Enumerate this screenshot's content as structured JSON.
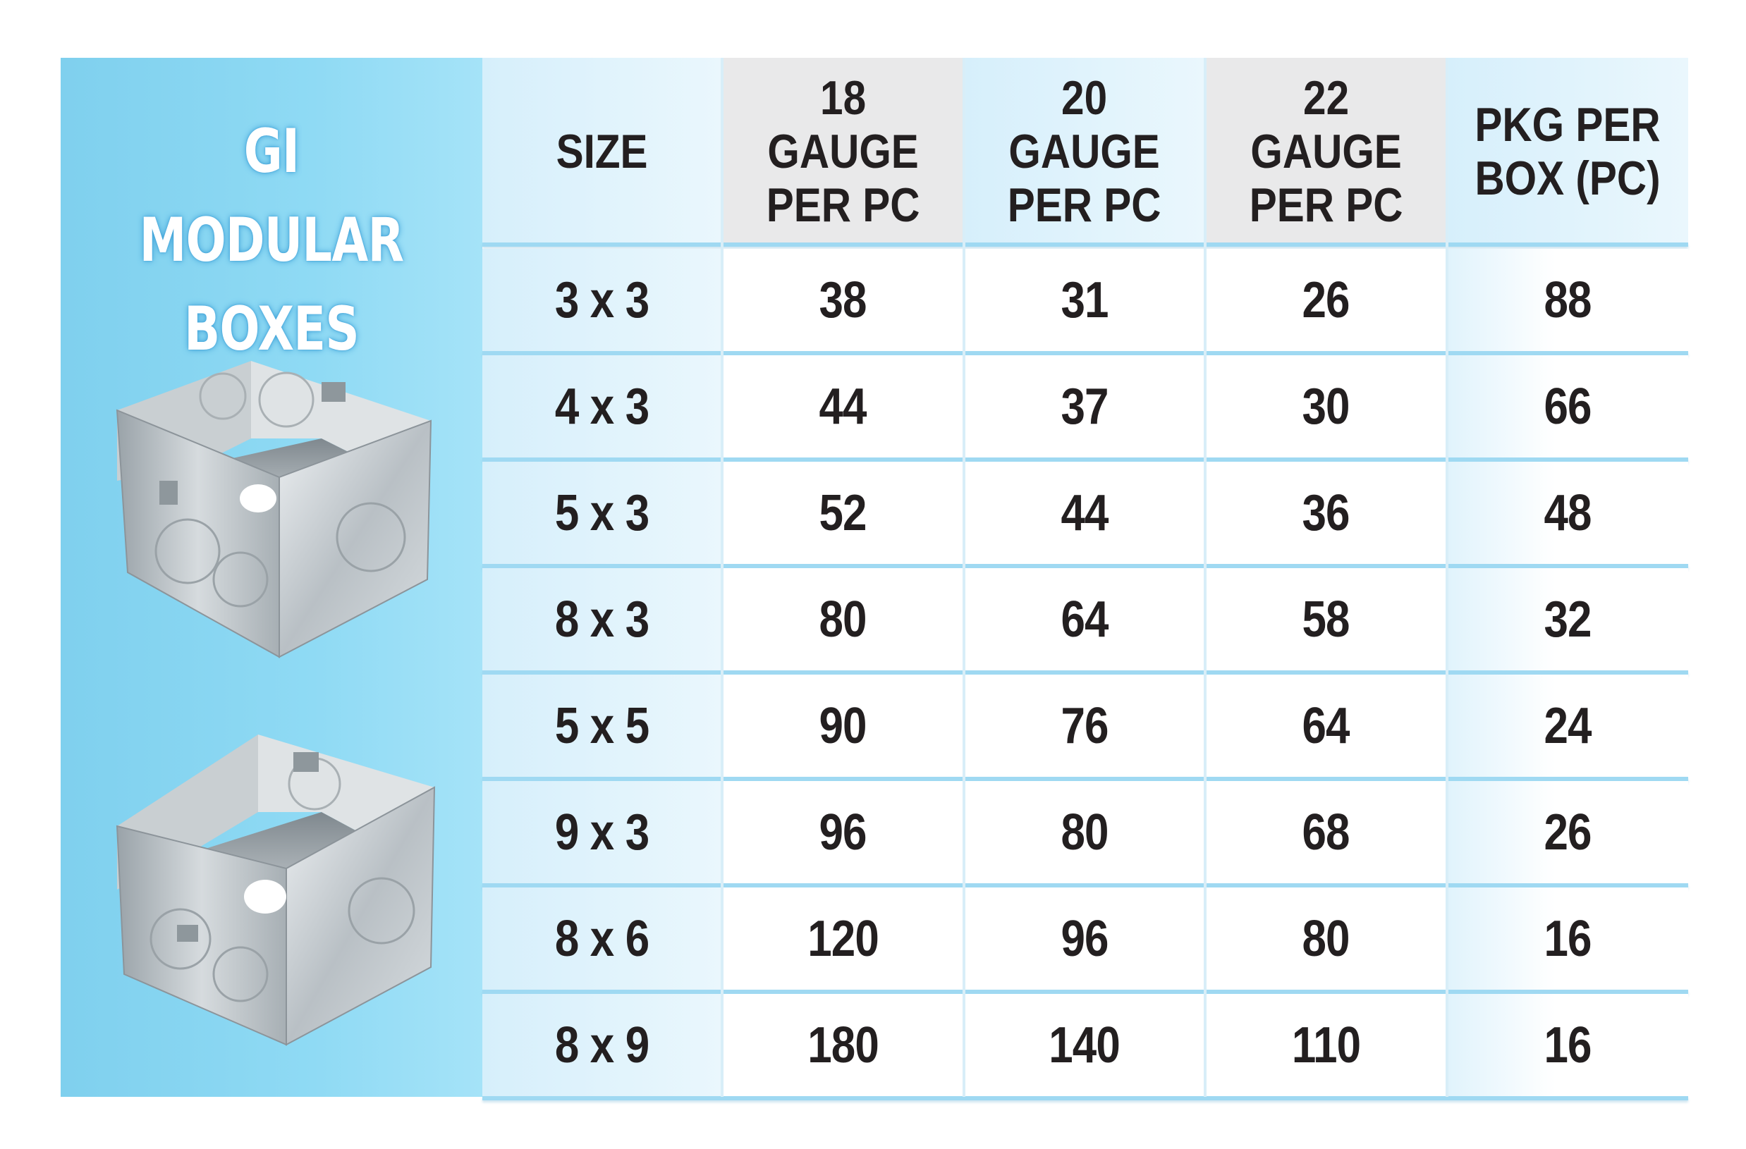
{
  "title": "GI MODULAR BOXES",
  "columns": [
    "SIZE",
    "18 GAUGE PER PC",
    "20 GAUGE PER PC",
    "22 GAUGE PER PC",
    "PKG PER BOX (PC)"
  ],
  "header_lines": [
    [
      "SIZE"
    ],
    [
      "18",
      "GAUGE",
      "PER PC"
    ],
    [
      "20",
      "GAUGE",
      "PER PC"
    ],
    [
      "22",
      "GAUGE",
      "PER PC"
    ],
    [
      "PKG PER",
      "BOX (PC)"
    ]
  ],
  "rows": [
    [
      "3 x 3",
      "38",
      "31",
      "26",
      "88"
    ],
    [
      "4 x 3",
      "44",
      "37",
      "30",
      "66"
    ],
    [
      "5 x 3",
      "52",
      "44",
      "36",
      "48"
    ],
    [
      "8 x 3",
      "80",
      "64",
      "58",
      "32"
    ],
    [
      "5 x 5",
      "90",
      "76",
      "64",
      "24"
    ],
    [
      "9 x 3",
      "96",
      "80",
      "68",
      "26"
    ],
    [
      "8 x 6",
      "120",
      "96",
      "80",
      "16"
    ],
    [
      "8 x 9",
      "180",
      "140",
      "110",
      "16"
    ]
  ],
  "colors": {
    "panel_blue": "#8fdaf4",
    "header_gray": "#e9e9ea",
    "text": "#231f20",
    "title_text": "#ffffff"
  },
  "images": [
    "square-gi-box-image",
    "rectangular-gi-box-image"
  ]
}
